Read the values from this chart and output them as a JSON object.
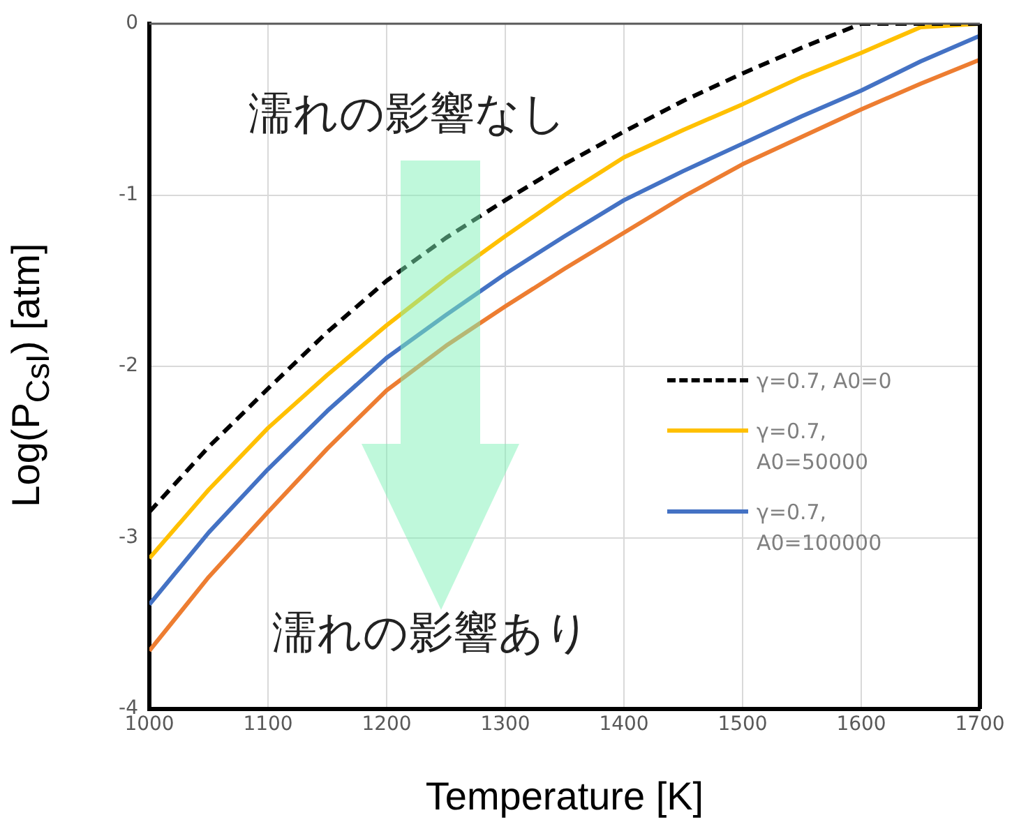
{
  "chart_data": {
    "type": "line",
    "xlabel": "Temperature [K]",
    "ylabel": "Log(P$_{CsI}$) [atm]",
    "x": [
      1000,
      1050,
      1100,
      1150,
      1200,
      1250,
      1300,
      1350,
      1400,
      1450,
      1500,
      1550,
      1600,
      1650,
      1700
    ],
    "series": [
      {
        "name": "γ=0.7, A0=0",
        "color": "#000000",
        "line_style": "dashed",
        "values": [
          -2.85,
          -2.47,
          -2.13,
          -1.8,
          -1.5,
          -1.25,
          -1.03,
          -0.82,
          -0.63,
          -0.45,
          -0.29,
          -0.14,
          0,
          0,
          0
        ]
      },
      {
        "name": "γ=0.7, A0=50000",
        "color": "#ffc000",
        "line_style": "solid",
        "values": [
          -3.12,
          -2.72,
          -2.36,
          -2.05,
          -1.76,
          -1.49,
          -1.24,
          -1.0,
          -0.78,
          -0.62,
          -0.47,
          -0.31,
          -0.17,
          -0.02,
          0
        ]
      },
      {
        "name": "γ=0.7, A0=100000",
        "color": "#4472c4",
        "line_style": "solid",
        "values": [
          -3.39,
          -2.97,
          -2.6,
          -2.26,
          -1.95,
          -1.7,
          -1.46,
          -1.24,
          -1.03,
          -0.86,
          -0.7,
          -0.54,
          -0.39,
          -0.22,
          -0.07
        ]
      },
      {
        "color": "#ed7d31",
        "line_style": "solid",
        "values": [
          -3.66,
          -3.23,
          -2.85,
          -2.48,
          -2.14,
          -1.88,
          -1.65,
          -1.43,
          -1.22,
          -1.01,
          -0.82,
          -0.66,
          -0.5,
          -0.35,
          -0.21
        ]
      }
    ],
    "xlim": [
      1000,
      1700
    ],
    "xticks": [
      1000,
      1100,
      1200,
      1300,
      1400,
      1500,
      1600,
      1700
    ],
    "ylim": [
      -4,
      0
    ],
    "yticks": [
      -4,
      -3,
      -2,
      -1,
      0
    ],
    "grid": true,
    "legend": "right",
    "marker": "none",
    "annotations": [
      "濡れの影響なし",
      "濡れの影響あり"
    ]
  }
}
